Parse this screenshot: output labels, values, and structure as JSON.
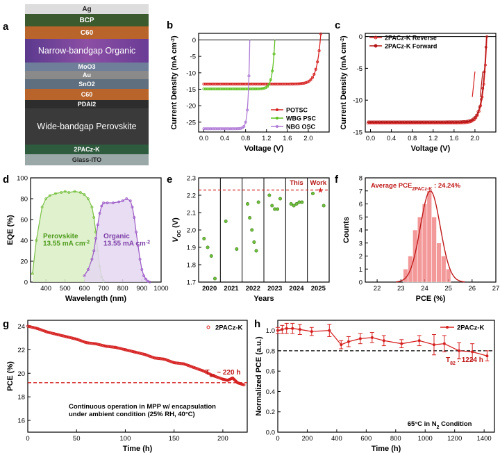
{
  "panels": {
    "a": {
      "letter": "a",
      "layers": [
        "Ag",
        "BCP",
        "C60",
        "Narrow-bandgap Organic",
        "MoO3",
        "Au",
        "SnO2",
        "C60",
        "PDAI2",
        "Wide-bandgap Perovskite",
        "2PACz-K",
        "Glass-ITO"
      ]
    },
    "b": {
      "letter": "b"
    },
    "c": {
      "letter": "c"
    },
    "d": {
      "letter": "d"
    },
    "e": {
      "letter": "e"
    },
    "f": {
      "letter": "f"
    },
    "g": {
      "letter": "g"
    },
    "h": {
      "letter": "h"
    }
  },
  "chart_data": [
    {
      "id": "b",
      "type": "line",
      "xlabel": "Voltage (V)",
      "ylabel": "Current Density (mA cm-2)",
      "xlim": [
        -0.1,
        2.4
      ],
      "ylim": [
        -28,
        2
      ],
      "xticks": [
        0.0,
        0.4,
        0.8,
        1.2,
        1.6,
        2.0
      ],
      "yticks": [
        0,
        -5,
        -10,
        -15,
        -20,
        -25
      ],
      "legend": "bottom-right",
      "series": [
        {
          "name": "POTSC",
          "color": "#d62020",
          "jsc": -13.4,
          "voc": 2.23
        },
        {
          "name": "WBG PSC",
          "color": "#5fc021",
          "jsc": -14.9,
          "voc": 1.36
        },
        {
          "name": "NBG OSC",
          "color": "#b07cd6",
          "jsc": -27.0,
          "voc": 0.88
        }
      ]
    },
    {
      "id": "c",
      "type": "line",
      "xlabel": "Voltage (V)",
      "ylabel": "Current Density (mA cm-2)",
      "xlim": [
        -0.1,
        2.4
      ],
      "ylim": [
        -15,
        0.5
      ],
      "xticks": [
        0.0,
        0.4,
        0.8,
        1.2,
        1.6,
        2.0
      ],
      "yticks": [
        0,
        -5,
        -10,
        -15
      ],
      "legend": "top-left",
      "series": [
        {
          "name": "2PACz-K Reverse",
          "color": "#d62020",
          "jsc": -13.6,
          "voc": 2.23
        },
        {
          "name": "2PACz-K Forward",
          "color": "#b51414",
          "jsc": -13.4,
          "voc": 2.22
        }
      ]
    },
    {
      "id": "d",
      "type": "area",
      "xlabel": "Wavelength (nm)",
      "ylabel": "EQE (%)",
      "xlim": [
        320,
        1000
      ],
      "ylim": [
        0,
        100
      ],
      "xticks": [
        400,
        500,
        600,
        700,
        800,
        900,
        1000
      ],
      "yticks": [
        0,
        20,
        40,
        60,
        80,
        100
      ],
      "series": [
        {
          "name": "Perovskite",
          "color": "#7ac143",
          "x": [
            330,
            350,
            380,
            400,
            420,
            450,
            480,
            500,
            520,
            550,
            580,
            600,
            620,
            640,
            650,
            660,
            670,
            680,
            690,
            700
          ],
          "y": [
            8,
            40,
            72,
            80,
            83,
            85,
            86,
            87,
            86,
            87,
            86,
            84,
            80,
            72,
            62,
            48,
            30,
            15,
            5,
            1
          ]
        },
        {
          "name": "Organic",
          "color": "#9b59c6",
          "x": [
            600,
            620,
            640,
            650,
            660,
            670,
            680,
            690,
            700,
            720,
            750,
            780,
            800,
            820,
            840,
            850,
            860,
            870,
            880,
            890,
            900,
            910,
            920,
            930,
            940
          ],
          "y": [
            6,
            12,
            22,
            30,
            42,
            55,
            66,
            73,
            76,
            76,
            76,
            77,
            78,
            80,
            78,
            72,
            62,
            48,
            35,
            22,
            12,
            6,
            3,
            1,
            0
          ]
        }
      ],
      "annotations": [
        "Perovskite",
        "13.55 mA cm-2",
        "Organic",
        "13.55 mA cm-2"
      ]
    },
    {
      "id": "e",
      "type": "scatter",
      "xlabel": "Years",
      "ylabel": "VOC (V)",
      "ylim": [
        1.7,
        2.3
      ],
      "categories": [
        "2020",
        "2021",
        "2022",
        "2023",
        "2024",
        "2025"
      ],
      "yticks": [
        1.7,
        1.8,
        1.9,
        2.0,
        2.1,
        2.2,
        2.3
      ],
      "reference_line": 2.23,
      "annotations": [
        "This",
        "Work"
      ],
      "points": [
        {
          "year": "2020",
          "values": [
            1.95,
            1.9,
            1.85,
            1.72
          ]
        },
        {
          "year": "2021",
          "values": [
            2.05,
            1.89
          ]
        },
        {
          "year": "2022",
          "values": [
            2.15,
            2.07,
            2.0,
            1.93,
            1.88,
            2.16
          ]
        },
        {
          "year": "2023",
          "values": [
            2.2,
            2.14,
            2.12,
            2.12,
            2.18
          ]
        },
        {
          "year": "2024",
          "values": [
            2.15,
            2.14,
            2.15,
            2.16,
            2.16
          ]
        },
        {
          "year": "2025",
          "values": [
            2.21,
            2.14
          ]
        }
      ],
      "highlight": {
        "year": "2025",
        "value": 2.23
      }
    },
    {
      "id": "f",
      "type": "bar",
      "xlabel": "PCE (%)",
      "ylabel": "Counts",
      "xlim": [
        21.5,
        27
      ],
      "ylim": [
        0,
        8
      ],
      "xticks": [
        22,
        23,
        24,
        25,
        26,
        27
      ],
      "yticks": [
        0,
        1,
        2,
        3,
        4,
        5,
        6,
        7,
        8
      ],
      "bin_width": 0.2,
      "bins": [
        23.2,
        23.4,
        23.6,
        23.8,
        24.0,
        24.2,
        24.4,
        24.6,
        24.8,
        25.0
      ],
      "values": [
        1,
        2,
        4,
        5,
        6,
        7,
        5,
        3,
        2,
        1
      ],
      "fit_mean": 24.24,
      "fit_sigma": 0.42,
      "annotation": "Average PCE2PACz-K : 24.24%"
    },
    {
      "id": "g",
      "type": "line",
      "xlabel": "Time (h)",
      "ylabel": "PCE (%)",
      "xlim": [
        0,
        225
      ],
      "ylim": [
        15,
        24.5
      ],
      "xticks": [
        0,
        50,
        100,
        150,
        200
      ],
      "yticks": [
        16,
        18,
        20,
        22,
        24
      ],
      "legend": "top-right",
      "series": [
        {
          "name": "2PACz-K",
          "color": "#d62020",
          "x": [
            0,
            10,
            20,
            30,
            40,
            50,
            60,
            70,
            80,
            90,
            100,
            110,
            120,
            130,
            140,
            150,
            160,
            170,
            180,
            190,
            200,
            205,
            210,
            215,
            222
          ],
          "y": [
            24.0,
            23.8,
            23.5,
            23.3,
            23.1,
            22.9,
            22.6,
            22.5,
            22.3,
            22.2,
            22.0,
            21.8,
            21.6,
            21.3,
            21.2,
            20.9,
            20.8,
            20.5,
            20.2,
            19.8,
            19.5,
            19.4,
            19.6,
            19.2,
            19.0
          ]
        }
      ],
      "reference_line": 19.2,
      "annotations": [
        "T80 ~ 220 h",
        "Continuous operation in MPP w/ encapsulation",
        "under ambient condition (25% RH, 40°C)"
      ]
    },
    {
      "id": "h",
      "type": "line",
      "xlabel": "Time (h)",
      "ylabel": "Normalized PCE (a.u.)",
      "xlim": [
        0,
        1470
      ],
      "ylim": [
        0,
        1.1
      ],
      "xticks": [
        0,
        200,
        400,
        600,
        800,
        1000,
        1200,
        1400
      ],
      "yticks": [
        0.0,
        0.2,
        0.4,
        0.6,
        0.8,
        1.0
      ],
      "legend": "top-right",
      "series": [
        {
          "name": "2PACz-K",
          "color": "#d62020",
          "x": [
            0,
            30,
            60,
            100,
            150,
            230,
            350,
            430,
            480,
            560,
            640,
            720,
            840,
            960,
            1060,
            1130,
            1230,
            1320,
            1420
          ],
          "y": [
            1.0,
            1.01,
            1.02,
            1.02,
            1.01,
            0.99,
            1.0,
            0.86,
            0.89,
            0.92,
            0.93,
            0.9,
            0.87,
            0.9,
            0.86,
            0.87,
            0.8,
            0.79,
            0.75
          ],
          "err": [
            0.03,
            0.04,
            0.05,
            0.05,
            0.05,
            0.04,
            0.06,
            0.04,
            0.05,
            0.05,
            0.05,
            0.05,
            0.04,
            0.05,
            0.1,
            0.08,
            0.08,
            0.08,
            0.05
          ]
        }
      ],
      "reference_line": 0.8,
      "annotations": [
        "T82 : 1224 h",
        "65°C in N2 Condition"
      ]
    }
  ]
}
